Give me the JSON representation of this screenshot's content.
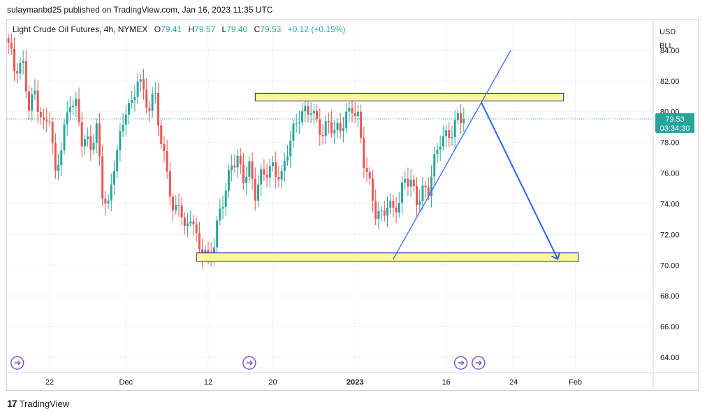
{
  "header": {
    "published_by": "sulaymanbd25 published on TradingView.com, Jan 16, 2023 11:35 UTC"
  },
  "legend": {
    "title": "Light Crude Oil Futures, 4h, NYMEX",
    "o_label": "O",
    "o": "79.41",
    "h_label": "H",
    "h": "79.57",
    "l_label": "L",
    "l": "79.40",
    "c_label": "C",
    "c": "79.53",
    "change": "+0.12 (+0.15%)"
  },
  "price_scale": {
    "currency": "USD",
    "unit": "BLL"
  },
  "last_price": {
    "value": "79.53",
    "countdown": "03:34:30"
  },
  "footer": {
    "brand": "TradingView",
    "logo": "17"
  },
  "colors": {
    "up": "#26a69a",
    "down": "#ef5350",
    "zone_fill": "#fff59d",
    "zone_border": "#1a237e",
    "drawing": "#2962ff",
    "event": "#7e57c2"
  },
  "chart_data": {
    "type": "candlestick",
    "symbol": "Light Crude Oil Futures",
    "interval": "4h",
    "exchange": "NYMEX",
    "ylim": [
      63,
      86
    ],
    "yticks": [
      64,
      66,
      68,
      70,
      72,
      74,
      76,
      78,
      80,
      82,
      84
    ],
    "ytick_labels": [
      "64.00",
      "66.00",
      "68.00",
      "70.00",
      "72.00",
      "74.00",
      "76.00",
      "78.00",
      "80.00",
      "82.00",
      "84.00"
    ],
    "xtick_labels": [
      "22",
      "Dec",
      "12",
      "20",
      "2023",
      "16",
      "24",
      "Feb"
    ],
    "xtick_index": [
      14,
      40,
      68,
      90,
      118,
      149,
      172,
      193
    ],
    "bars_visible": 220,
    "close_path": [
      {
        "i": 0,
        "p": 84.5
      },
      {
        "i": 2,
        "p": 82.5
      },
      {
        "i": 5,
        "p": 82.8
      },
      {
        "i": 7,
        "p": 80.5
      },
      {
        "i": 9,
        "p": 81.5
      },
      {
        "i": 12,
        "p": 79.0
      },
      {
        "i": 14,
        "p": 79.5
      },
      {
        "i": 16,
        "p": 75.5
      },
      {
        "i": 19,
        "p": 79.0
      },
      {
        "i": 21,
        "p": 81.0
      },
      {
        "i": 23,
        "p": 80.5
      },
      {
        "i": 25,
        "p": 78.0
      },
      {
        "i": 28,
        "p": 77.5
      },
      {
        "i": 30,
        "p": 79.0
      },
      {
        "i": 32,
        "p": 75.0
      },
      {
        "i": 34,
        "p": 74.0
      },
      {
        "i": 36,
        "p": 76.5
      },
      {
        "i": 38,
        "p": 78.0
      },
      {
        "i": 40,
        "p": 80.0
      },
      {
        "i": 42,
        "p": 80.5
      },
      {
        "i": 44,
        "p": 82.5
      },
      {
        "i": 46,
        "p": 81.5
      },
      {
        "i": 48,
        "p": 80.0
      },
      {
        "i": 50,
        "p": 81.0
      },
      {
        "i": 52,
        "p": 77.5
      },
      {
        "i": 54,
        "p": 76.5
      },
      {
        "i": 56,
        "p": 73.5
      },
      {
        "i": 58,
        "p": 74.5
      },
      {
        "i": 60,
        "p": 72.0
      },
      {
        "i": 62,
        "p": 73.0
      },
      {
        "i": 64,
        "p": 71.5
      },
      {
        "i": 66,
        "p": 71.0
      },
      {
        "i": 68,
        "p": 70.8
      },
      {
        "i": 70,
        "p": 71.5
      },
      {
        "i": 72,
        "p": 73.5
      },
      {
        "i": 74,
        "p": 74.5
      },
      {
        "i": 76,
        "p": 76.5
      },
      {
        "i": 78,
        "p": 77.0
      },
      {
        "i": 80,
        "p": 76.0
      },
      {
        "i": 82,
        "p": 76.5
      },
      {
        "i": 84,
        "p": 74.5
      },
      {
        "i": 86,
        "p": 75.5
      },
      {
        "i": 88,
        "p": 76.0
      },
      {
        "i": 90,
        "p": 76.5
      },
      {
        "i": 93,
        "p": 76.0
      },
      {
        "i": 95,
        "p": 77.5
      },
      {
        "i": 97,
        "p": 78.5
      },
      {
        "i": 99,
        "p": 79.5
      },
      {
        "i": 101,
        "p": 80.0
      },
      {
        "i": 103,
        "p": 80.5
      },
      {
        "i": 105,
        "p": 79.5
      },
      {
        "i": 107,
        "p": 78.5
      },
      {
        "i": 109,
        "p": 79.0
      },
      {
        "i": 111,
        "p": 78.5
      },
      {
        "i": 113,
        "p": 79.0
      },
      {
        "i": 115,
        "p": 80.0
      },
      {
        "i": 117,
        "p": 80.5
      },
      {
        "i": 119,
        "p": 79.5
      },
      {
        "i": 121,
        "p": 76.5
      },
      {
        "i": 123,
        "p": 75.0
      },
      {
        "i": 125,
        "p": 73.5
      },
      {
        "i": 127,
        "p": 73.5
      },
      {
        "i": 129,
        "p": 74.2
      },
      {
        "i": 131,
        "p": 73.5
      },
      {
        "i": 133,
        "p": 73.8
      },
      {
        "i": 135,
        "p": 75.5
      },
      {
        "i": 137,
        "p": 75.5
      },
      {
        "i": 139,
        "p": 74.5
      },
      {
        "i": 141,
        "p": 75.0
      },
      {
        "i": 143,
        "p": 74.8
      },
      {
        "i": 145,
        "p": 76.5
      },
      {
        "i": 147,
        "p": 78.0
      },
      {
        "i": 149,
        "p": 78.5
      },
      {
        "i": 151,
        "p": 79.0
      },
      {
        "i": 153,
        "p": 79.8
      },
      {
        "i": 155,
        "p": 79.53
      }
    ],
    "annotations": {
      "resistance_zone": {
        "from_i": 84,
        "to_i": 189,
        "top": 81.2,
        "bottom": 80.7
      },
      "support_zone": {
        "from_i": 64,
        "to_i": 194,
        "top": 70.8,
        "bottom": 70.25
      },
      "trendline": {
        "from_i": 131,
        "from_p": 70.4,
        "to_i": 171,
        "to_p": 84.0
      },
      "projection_arrow": {
        "points": [
          {
            "i": 161,
            "p": 80.6
          },
          {
            "i": 187,
            "p": 70.4
          }
        ]
      },
      "event_markers": [
        {
          "i": 3
        },
        {
          "i": 82
        },
        {
          "i": 154
        },
        {
          "i": 160
        }
      ]
    }
  }
}
